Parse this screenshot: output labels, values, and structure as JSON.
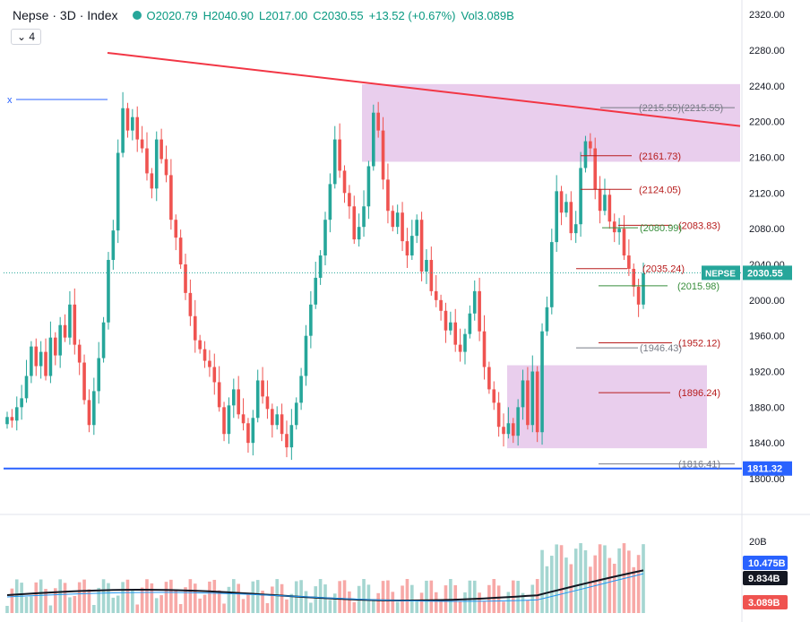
{
  "header": {
    "symbol": "Nepse · 3D · Index",
    "open": "O2020.79",
    "high": "H2040.90",
    "low": "L2017.00",
    "close": "C2030.55",
    "change": "+13.52 (+0.67%)",
    "vol": "Vol3.089B",
    "sub_label": "4"
  },
  "colors": {
    "up": "#26a69a",
    "down": "#ef5350",
    "zone": "#e1bee7",
    "trend": "#f23645",
    "support": "#2962ff"
  },
  "price_tag": {
    "symbol": "NEPSE",
    "value": "2030.55"
  },
  "support_tag": "1811.32",
  "vol_tags": [
    "10.475B",
    "9.834B",
    "3.089B"
  ],
  "vol_axis_label": "20B",
  "x_marker": "x",
  "chart_data": {
    "type": "candlestick",
    "ylim": [
      1792,
      2330
    ],
    "yticks": [
      1800,
      1840,
      1880,
      1920,
      1960,
      2000,
      2040,
      2080,
      2120,
      2160,
      2200,
      2240,
      2280,
      2320
    ],
    "ytick_labels": [
      "1800.00",
      "1840.00",
      "1880.00",
      "1920.00",
      "1960.00",
      "2000.00",
      "2040.00",
      "2080.00",
      "2120.00",
      "2160.00",
      "2200.00",
      "2240.00",
      "2280.00",
      "2320.00"
    ],
    "closes": [
      1869,
      1865,
      1880,
      1890,
      1915,
      1948,
      1926,
      1942,
      1915,
      1958,
      1938,
      1972,
      1958,
      1995,
      1950,
      1930,
      1888,
      1860,
      1898,
      1935,
      1975,
      2045,
      2078,
      2165,
      2215,
      2190,
      2205,
      2180,
      2170,
      2142,
      2125,
      2180,
      2158,
      2140,
      2090,
      2070,
      2040,
      2008,
      1982,
      1955,
      1945,
      1932,
      1925,
      1908,
      1880,
      1850,
      1882,
      1900,
      1872,
      1862,
      1840,
      1868,
      1910,
      1892,
      1878,
      1860,
      1872,
      1850,
      1835,
      1860,
      1885,
      1915,
      1960,
      1995,
      2025,
      2050,
      2090,
      2130,
      2180,
      2145,
      2120,
      2105,
      2068,
      2082,
      2105,
      2150,
      2210,
      2190,
      2135,
      2100,
      2082,
      2098,
      2066,
      2050,
      2072,
      2090,
      2032,
      2045,
      2010,
      2000,
      1988,
      1966,
      1975,
      1950,
      1942,
      1962,
      1985,
      2010,
      1965,
      1925,
      1900,
      1885,
      1858,
      1850,
      1862,
      1848,
      1880,
      1910,
      1860,
      1920,
      1852,
      1965,
      1992,
      2065,
      2122,
      2098,
      2110,
      2075,
      2085,
      2148,
      2178,
      2170,
      2124,
      2100,
      2118,
      2088,
      2076,
      2080,
      2050,
      2035,
      2015,
      1995,
      2030
    ],
    "volume_axis_max": 20,
    "zones": [
      {
        "from": 2155,
        "to": 2242
      },
      {
        "from": 1834,
        "to": 1927
      }
    ],
    "trendline": [
      2277,
      2195
    ],
    "support": 1811.32,
    "levels": [
      {
        "label": "(2215.55)(2215.55)",
        "color": "#787b86"
      },
      {
        "label": "(2161.73)",
        "color": "#b71c1c"
      },
      {
        "label": "(2124.05)",
        "color": "#b71c1c"
      },
      {
        "label": "(2083.83)",
        "color": "#b71c1c"
      },
      {
        "label": "(2080.99)",
        "color": "#388e3c"
      },
      {
        "label": "(2035.24)",
        "color": "#b71c1c"
      },
      {
        "label": "(2015.98)",
        "color": "#388e3c"
      },
      {
        "label": "(1952.12)",
        "color": "#b71c1c"
      },
      {
        "label": "(1946.43)",
        "color": "#787b86"
      },
      {
        "label": "(1896.24)",
        "color": "#b71c1c"
      },
      {
        "label": "(1816.41)",
        "color": "#787b86"
      }
    ]
  }
}
